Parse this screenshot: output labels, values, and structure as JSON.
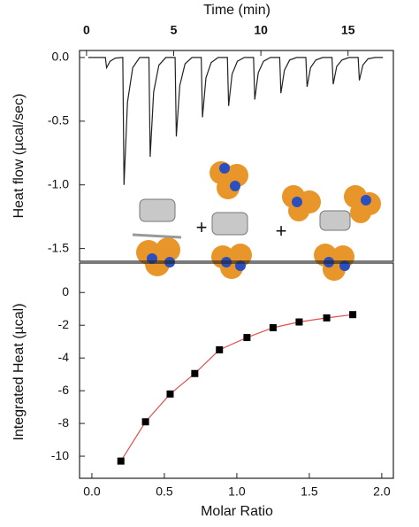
{
  "chart_data": [
    {
      "type": "line",
      "x_label": "Time (min)",
      "y_label": "Heat flow (µcal/sec)",
      "xaxis_position": "top",
      "xlim": [
        -0.4,
        17.6
      ],
      "ylim": [
        -1.6,
        0.055
      ],
      "xticks": [
        0,
        5,
        10,
        15
      ],
      "yticks": [
        {
          "value": 0,
          "label": "0.0"
        },
        -0.5,
        {
          "value": -1,
          "label": "-1.0"
        },
        -1.5
      ],
      "series": [
        {
          "color": "#222222",
          "x": [
            0.1,
            1.08,
            1.15,
            1.35,
            1.65,
            2.05,
            2.08,
            2.15,
            2.35,
            2.65,
            3.05,
            3.58,
            3.65,
            3.85,
            4.15,
            4.55,
            5.08,
            5.15,
            5.35,
            5.65,
            6.05,
            6.58,
            6.65,
            6.85,
            7.15,
            7.55,
            8.08,
            8.15,
            8.35,
            8.65,
            9.05,
            9.58,
            9.65,
            9.85,
            10.15,
            10.55,
            11.08,
            11.15,
            11.35,
            11.65,
            12.05,
            12.58,
            12.65,
            12.85,
            13.15,
            13.55,
            14.08,
            14.15,
            14.35,
            14.65,
            15.05,
            15.58,
            15.65,
            15.85,
            16.15,
            16.55,
            17.0
          ],
          "values": [
            0,
            0,
            -0.08,
            -0.03,
            -0.005,
            0,
            0,
            -1.0,
            -0.35,
            -0.08,
            0,
            0,
            -0.78,
            -0.27,
            -0.06,
            0,
            0,
            -0.62,
            -0.22,
            -0.05,
            0,
            0,
            -0.47,
            -0.16,
            -0.04,
            0,
            0,
            -0.38,
            -0.13,
            -0.03,
            0,
            0,
            -0.33,
            -0.12,
            -0.03,
            0,
            0,
            -0.28,
            -0.1,
            -0.02,
            0,
            0,
            -0.23,
            -0.08,
            -0.02,
            0,
            0,
            -0.21,
            -0.07,
            -0.02,
            0,
            0,
            -0.18,
            -0.06,
            -0.01,
            0,
            0
          ]
        }
      ]
    },
    {
      "type": "scatter",
      "x_label": "Molar Ratio",
      "y_label": "Integrated Heat (µcal)",
      "xlim": [
        -0.085,
        2.08
      ],
      "ylim": [
        -11.35,
        1.8
      ],
      "xticks": [
        {
          "value": 0,
          "label": "0.0"
        },
        0.5,
        {
          "value": 1,
          "label": "1.0"
        },
        1.5,
        {
          "value": 2,
          "label": "2.0"
        }
      ],
      "yticks": [
        0,
        -2,
        -4,
        -6,
        -8,
        -10
      ],
      "series": [
        {
          "style": "line",
          "color": "#e05050",
          "x": [
            0.2,
            0.37,
            0.54,
            0.71,
            0.88,
            1.07,
            1.25,
            1.43,
            1.62,
            1.8
          ],
          "values": [
            -10.3,
            -7.9,
            -6.2,
            -4.95,
            -3.5,
            -2.75,
            -2.15,
            -1.8,
            -1.55,
            -1.35
          ]
        },
        {
          "style": "markers",
          "color": "#000000",
          "x": [
            0.2,
            0.37,
            0.54,
            0.71,
            0.88,
            1.07,
            1.25,
            1.43,
            1.62,
            1.8
          ],
          "values": [
            -10.3,
            -7.9,
            -6.2,
            -4.95,
            -3.5,
            -2.75,
            -2.15,
            -1.8,
            -1.55,
            -1.35
          ]
        }
      ]
    }
  ],
  "scheme": {
    "operators": [
      "+",
      "+"
    ]
  }
}
